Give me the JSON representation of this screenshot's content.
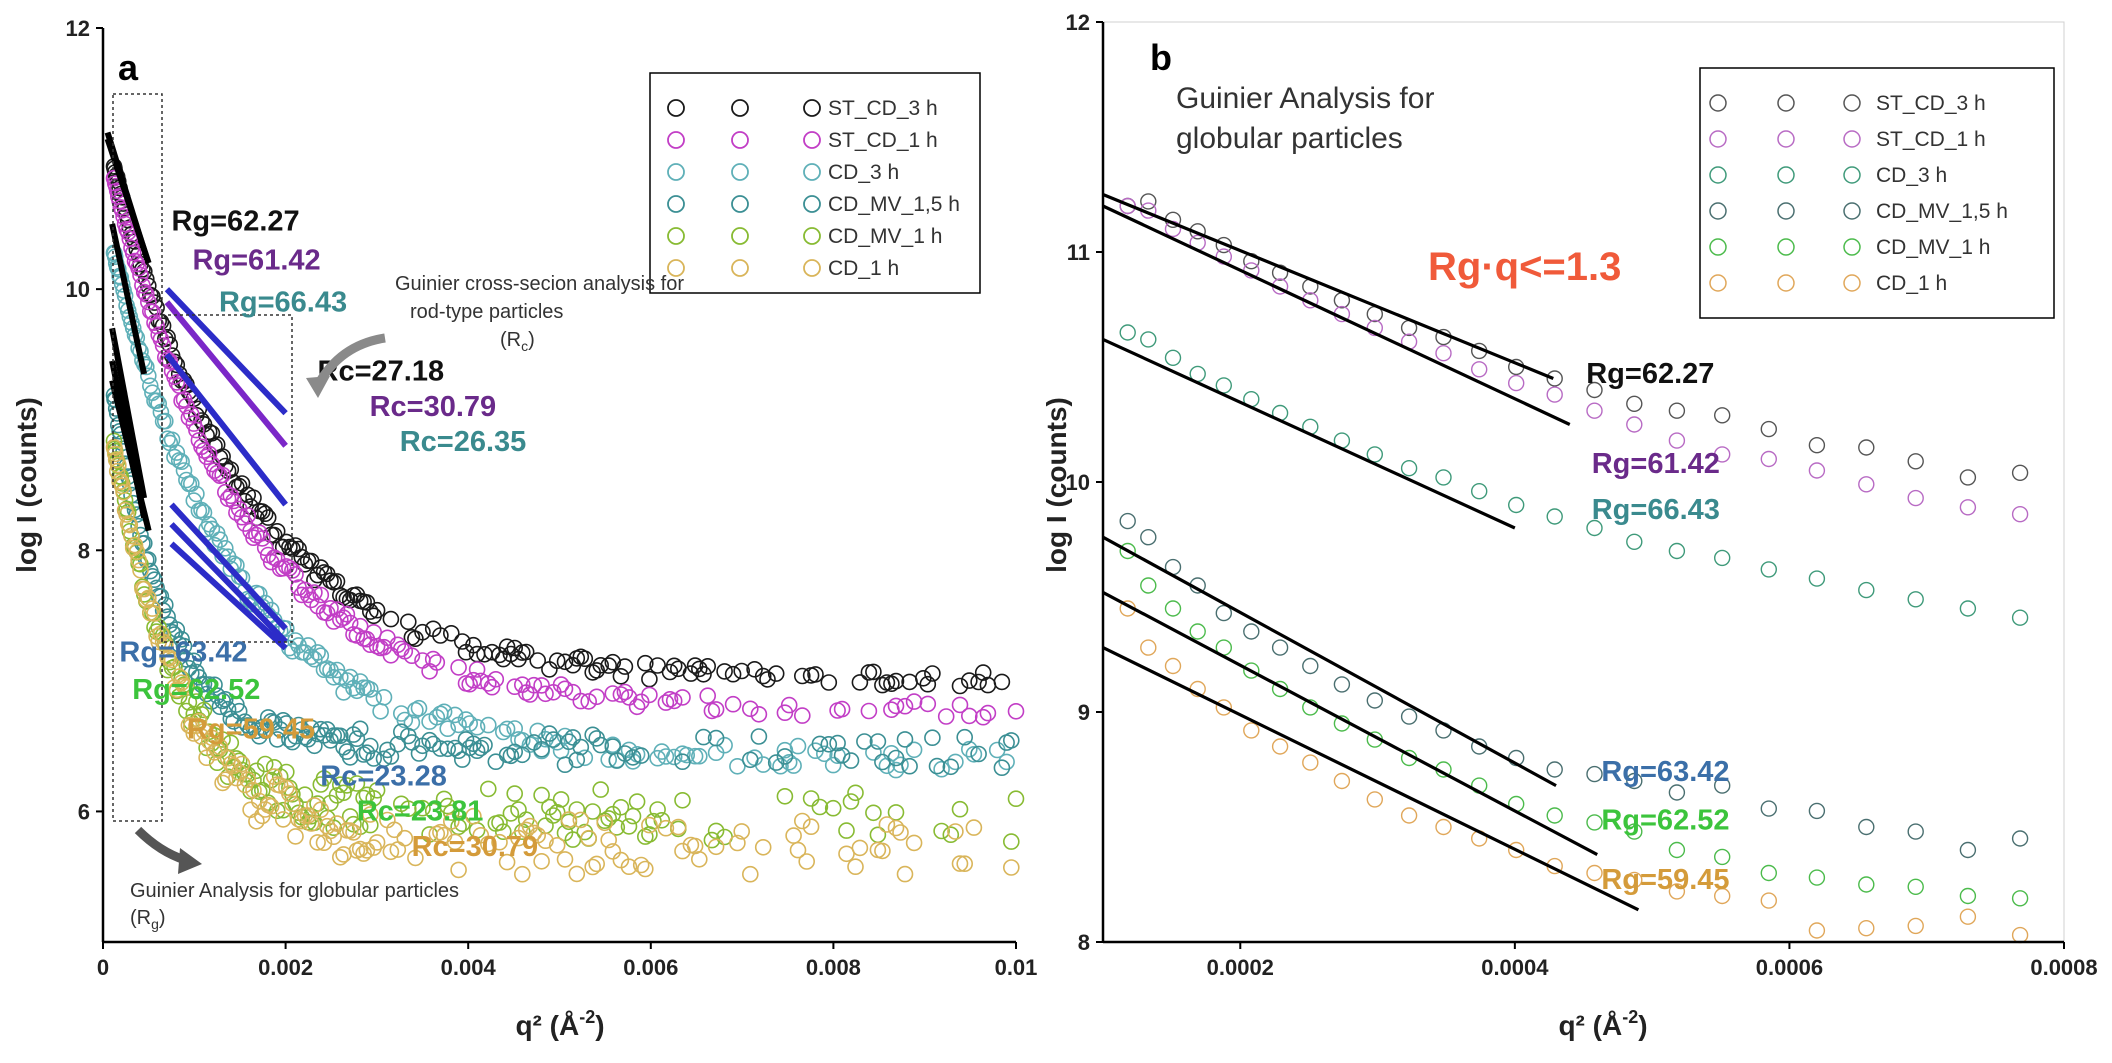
{
  "chart_data": [
    {
      "panel": "a",
      "type": "scatter",
      "xlabel_main": "q²",
      "xlabel_unit": "Å",
      "xlabel_exp": "-2",
      "ylabel": "log I (counts)",
      "xlim": [
        0,
        0.01
      ],
      "ylim": [
        5,
        12
      ],
      "x_ticks": [
        0,
        0.002,
        0.004,
        0.006,
        0.008,
        0.01
      ],
      "x_tick_labels": [
        "0",
        "0.002",
        "0.004",
        "0.006",
        "0.008",
        "0.01"
      ],
      "y_ticks": [
        6,
        8,
        10,
        12
      ],
      "y_tick_labels": [
        "6",
        "8",
        "10",
        "12"
      ],
      "legend": [
        {
          "name": "ST_CD_3 h",
          "color": "#1a1a1a"
        },
        {
          "name": "ST_CD_1 h",
          "color": "#c23ec6"
        },
        {
          "name": "CD_3 h",
          "color": "#5fb0b8"
        },
        {
          "name": "CD_MV_1,5 h",
          "color": "#3b8f94"
        },
        {
          "name": "CD_MV_1 h",
          "color": "#88bb33"
        },
        {
          "name": "CD_1 h",
          "color": "#d9b55a"
        }
      ],
      "series": [
        {
          "name": "ST_CD_3 h",
          "color": "#1a1a1a",
          "A": 7.05,
          "B": 4.25,
          "k": 720,
          "noise": 0.07
        },
        {
          "name": "ST_CD_1 h",
          "color": "#c23ec6",
          "A": 6.82,
          "B": 4.4,
          "k": 720,
          "noise": 0.07
        },
        {
          "name": "CD_3 h",
          "color": "#5fb0b8",
          "A": 6.45,
          "B": 4.2,
          "k": 760,
          "noise": 0.09
        },
        {
          "name": "CD_MV_1,5 h",
          "color": "#3b8f94",
          "A": 6.5,
          "B": 3.3,
          "k": 1700,
          "noise": 0.12
        },
        {
          "name": "CD_MV_1 h",
          "color": "#88bb33",
          "A": 6.0,
          "B": 3.4,
          "k": 1500,
          "noise": 0.2
        },
        {
          "name": "CD_1 h",
          "color": "#d9b55a",
          "A": 5.75,
          "B": 3.55,
          "k": 1300,
          "noise": 0.22
        }
      ],
      "fits_rg": [
        {
          "x1": 5e-05,
          "y1": 11.2,
          "x2": 0.00045,
          "y2": 10.3,
          "color": "#000000"
        },
        {
          "x1": 5e-05,
          "y1": 11.15,
          "x2": 0.0005,
          "y2": 10.2,
          "color": "#000000"
        },
        {
          "x1": 0.0001,
          "y1": 10.5,
          "x2": 0.00045,
          "y2": 9.35,
          "color": "#000000"
        },
        {
          "x1": 0.0001,
          "y1": 9.7,
          "x2": 0.00045,
          "y2": 8.4,
          "color": "#000000"
        },
        {
          "x1": 0.0001,
          "y1": 9.45,
          "x2": 0.00045,
          "y2": 8.25,
          "color": "#000000"
        },
        {
          "x1": 0.0001,
          "y1": 9.3,
          "x2": 0.0005,
          "y2": 8.15,
          "color": "#000000"
        }
      ],
      "fits_rc": [
        {
          "x1": 0.0007,
          "y1": 10.0,
          "x2": 0.002,
          "y2": 9.05,
          "color": "#2c2cc8"
        },
        {
          "x1": 0.0007,
          "y1": 9.9,
          "x2": 0.002,
          "y2": 8.8,
          "color": "#7b27c8"
        },
        {
          "x1": 0.0007,
          "y1": 9.5,
          "x2": 0.002,
          "y2": 8.35,
          "color": "#2c2cc8"
        },
        {
          "x1": 0.00075,
          "y1": 8.35,
          "x2": 0.002,
          "y2": 7.4,
          "color": "#2c2cc8"
        },
        {
          "x1": 0.00075,
          "y1": 8.2,
          "x2": 0.002,
          "y2": 7.3,
          "color": "#2c2cc8"
        },
        {
          "x1": 0.00075,
          "y1": 8.05,
          "x2": 0.002,
          "y2": 7.25,
          "color": "#2c2cc8"
        }
      ],
      "annotations": [
        {
          "text": "Rg=62.27",
          "color": "#111111",
          "x": 0.00075,
          "y": 10.45
        },
        {
          "text": "Rg=61.42",
          "color": "#6a2a8a",
          "x": 0.00098,
          "y": 10.15
        },
        {
          "text": "Rg=66.43",
          "color": "#3a8a8e",
          "x": 0.00127,
          "y": 9.83
        },
        {
          "text": "Rc=27.18",
          "color": "#111111",
          "x": 0.00235,
          "y": 9.3
        },
        {
          "text": "Rc=30.79",
          "color": "#6a2a8a",
          "x": 0.00292,
          "y": 9.03
        },
        {
          "text": "Rc=26.35",
          "color": "#3a8a8e",
          "x": 0.00325,
          "y": 8.76
        },
        {
          "text": "Rg=63.42",
          "color": "#3b6fa8",
          "x": 0.00018,
          "y": 7.15
        },
        {
          "text": "Rg=62.52",
          "color": "#3cc43c",
          "x": 0.00032,
          "y": 6.86
        },
        {
          "text": "Rg=59.45",
          "color": "#d49b3a",
          "x": 0.00092,
          "y": 6.56
        },
        {
          "text": "Rc=23.28",
          "color": "#3b6fa8",
          "x": 0.00238,
          "y": 6.2
        },
        {
          "text": "Rc=23.81",
          "color": "#3cc43c",
          "x": 0.00278,
          "y": 5.93
        },
        {
          "text": "Rc=30.79",
          "color": "#d49b3a",
          "x": 0.00338,
          "y": 5.66
        }
      ],
      "notes": {
        "rod_line1": "Guinier cross-secion analysis for",
        "rod_line2": "rod-type particles",
        "rod_line3_main": "(R",
        "rod_line3_sub": "c",
        "rod_line3_end": ")",
        "glob_line1": "Guinier Analysis for globular particles",
        "glob_line2_main": "(R",
        "glob_line2_sub": "g",
        "glob_line2_end": ")"
      }
    },
    {
      "panel": "b",
      "type": "scatter",
      "title_line1": "Guinier Analysis for",
      "title_line2": "globular particles",
      "condition": "Rg·q<=1.3",
      "condition_color": "#f05a3a",
      "xlabel_main": "q²",
      "xlabel_unit": "Å",
      "xlabel_exp": "-2",
      "ylabel": "log I (counts)",
      "xlim": [
        0.0001,
        0.0008
      ],
      "ylim": [
        8,
        12
      ],
      "x_ticks": [
        0.0002,
        0.0004,
        0.0006,
        0.0008
      ],
      "x_tick_labels": [
        "0.0002",
        "0.0004",
        "0.0006",
        "0.0008"
      ],
      "y_ticks": [
        8,
        9,
        10,
        11,
        12
      ],
      "y_tick_labels": [
        "8",
        "9",
        "10",
        "11",
        "12"
      ],
      "legend": [
        {
          "name": "ST_CD_3 h",
          "color": "#555555"
        },
        {
          "name": "ST_CD_1 h",
          "color": "#b86bc4"
        },
        {
          "name": "CD_3 h",
          "color": "#3f9a7a"
        },
        {
          "name": "CD_MV_1,5 h",
          "color": "#4a6f70"
        },
        {
          "name": "CD_MV_1 h",
          "color": "#4cbb4c"
        },
        {
          "name": "CD_1 h",
          "color": "#e0a75a"
        }
      ],
      "x_points": [
        0.000118,
        0.000133,
        0.000151,
        0.000169,
        0.000188,
        0.000208,
        0.000229,
        0.000251,
        0.000274,
        0.000298,
        0.000323,
        0.000348,
        0.000374,
        0.000401,
        0.000429,
        0.000458,
        0.000487,
        0.000518,
        0.000551,
        0.000585,
        0.00062,
        0.000656,
        0.000692,
        0.00073,
        0.000768
      ],
      "series": [
        {
          "name": "ST_CD_3 h",
          "color": "#555555",
          "y": [
            11.2,
            11.22,
            11.14,
            11.09,
            11.03,
            10.96,
            10.91,
            10.85,
            10.79,
            10.73,
            10.67,
            10.63,
            10.57,
            10.5,
            10.45,
            10.4,
            10.34,
            10.31,
            10.29,
            10.23,
            10.16,
            10.15,
            10.09,
            10.02,
            10.04
          ]
        },
        {
          "name": "ST_CD_1 h",
          "color": "#b86bc4",
          "y": [
            11.2,
            11.18,
            11.1,
            11.04,
            10.98,
            10.92,
            10.85,
            10.79,
            10.73,
            10.67,
            10.61,
            10.56,
            10.49,
            10.43,
            10.38,
            10.31,
            10.25,
            10.18,
            10.12,
            10.1,
            10.05,
            9.99,
            9.93,
            9.89,
            9.86
          ]
        },
        {
          "name": "CD_3 h",
          "color": "#3f9a7a",
          "y": [
            10.65,
            10.62,
            10.54,
            10.47,
            10.42,
            10.36,
            10.3,
            10.24,
            10.18,
            10.12,
            10.06,
            10.02,
            9.96,
            9.9,
            9.85,
            9.8,
            9.74,
            9.7,
            9.67,
            9.62,
            9.58,
            9.53,
            9.49,
            9.45,
            9.41
          ]
        },
        {
          "name": "CD_MV_1,5 h",
          "color": "#4a6f70",
          "y": [
            9.83,
            9.76,
            9.63,
            9.55,
            9.43,
            9.35,
            9.28,
            9.2,
            9.12,
            9.05,
            8.98,
            8.92,
            8.85,
            8.8,
            8.75,
            8.73,
            8.7,
            8.65,
            8.68,
            8.58,
            8.57,
            8.5,
            8.48,
            8.4,
            8.45
          ]
        },
        {
          "name": "CD_MV_1 h",
          "color": "#4cbb4c",
          "y": [
            9.7,
            9.55,
            9.45,
            9.35,
            9.28,
            9.18,
            9.1,
            9.02,
            8.95,
            8.88,
            8.8,
            8.75,
            8.68,
            8.6,
            8.55,
            8.52,
            8.48,
            8.4,
            8.37,
            8.3,
            8.28,
            8.25,
            8.24,
            8.2,
            8.19
          ]
        },
        {
          "name": "CD_1 h",
          "color": "#e0a75a",
          "y": [
            9.45,
            9.28,
            9.2,
            9.1,
            9.02,
            8.92,
            8.85,
            8.78,
            8.7,
            8.62,
            8.55,
            8.5,
            8.45,
            8.4,
            8.33,
            8.3,
            8.27,
            8.22,
            8.2,
            8.18,
            8.05,
            8.06,
            8.07,
            8.11,
            8.03
          ]
        }
      ],
      "fits": [
        {
          "x1": 0.0001,
          "y1": 11.25,
          "x2": 0.000428,
          "y2": 10.45
        },
        {
          "x1": 0.0001,
          "y1": 11.2,
          "x2": 0.00044,
          "y2": 10.25
        },
        {
          "x1": 0.0001,
          "y1": 10.62,
          "x2": 0.0004,
          "y2": 9.8
        },
        {
          "x1": 0.0001,
          "y1": 9.76,
          "x2": 0.00043,
          "y2": 8.68
        },
        {
          "x1": 0.0001,
          "y1": 9.52,
          "x2": 0.00046,
          "y2": 8.38
        },
        {
          "x1": 0.0001,
          "y1": 9.28,
          "x2": 0.00049,
          "y2": 8.14
        }
      ],
      "annotations": [
        {
          "text": "Rg=62.27",
          "color": "#111111",
          "x": 0.000452,
          "y": 10.43
        },
        {
          "text": "Rg=61.42",
          "color": "#6a2a8a",
          "x": 0.000456,
          "y": 10.04
        },
        {
          "text": "Rg=66.43",
          "color": "#3a8a8e",
          "x": 0.000456,
          "y": 9.84
        },
        {
          "text": "Rg=63.42",
          "color": "#3b6fa8",
          "x": 0.000463,
          "y": 8.7
        },
        {
          "text": "Rg=62.52",
          "color": "#3cc43c",
          "x": 0.000463,
          "y": 8.49
        },
        {
          "text": "Rg=59.45",
          "color": "#d49b3a",
          "x": 0.000463,
          "y": 8.23
        }
      ]
    }
  ]
}
